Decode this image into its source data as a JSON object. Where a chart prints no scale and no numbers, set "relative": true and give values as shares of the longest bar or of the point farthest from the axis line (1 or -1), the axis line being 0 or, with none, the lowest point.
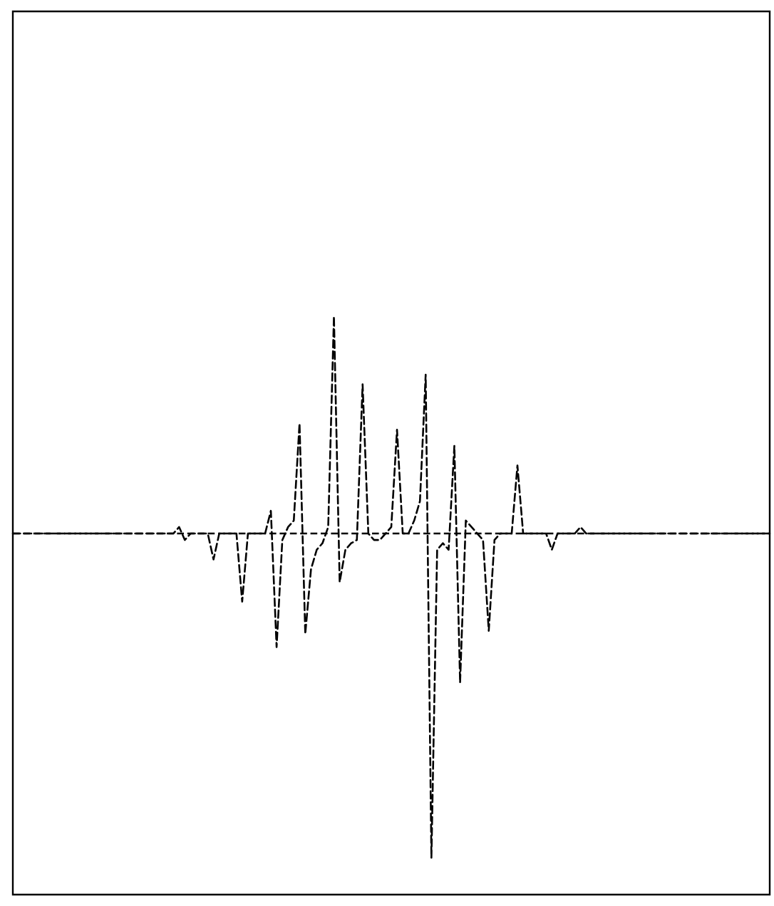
{
  "chart_data": {
    "type": "line",
    "relative": true,
    "ref_lines": [
      {
        "axis": "y",
        "value": 0,
        "color": "#000000",
        "line_style": "dashed"
      }
    ],
    "line_style": "dashed",
    "marker": "none",
    "categories": [
      null,
      null,
      null,
      null,
      null,
      null,
      null,
      null,
      null,
      null,
      null,
      null,
      null,
      null,
      null,
      null,
      null,
      null,
      null,
      null,
      null,
      null,
      null,
      null,
      null,
      null,
      null,
      null,
      null,
      null,
      null,
      null,
      null,
      null,
      null,
      null,
      null,
      null,
      null,
      null,
      null,
      null,
      null,
      null,
      null,
      null,
      null,
      null,
      null,
      null,
      null,
      null,
      null,
      null,
      null,
      null,
      null,
      null,
      null,
      null,
      null,
      null,
      null,
      null,
      null,
      null,
      null,
      null,
      null,
      null,
      null,
      null,
      null,
      null,
      null,
      null,
      null,
      null,
      null,
      null,
      null,
      null,
      null,
      null,
      null,
      null,
      null,
      null,
      null,
      null,
      null,
      null,
      null,
      null,
      null,
      null,
      null,
      null,
      null,
      null,
      null,
      null,
      null,
      null,
      null,
      null,
      null,
      null,
      null,
      null,
      null,
      null,
      null,
      null,
      null,
      null,
      null,
      null,
      null,
      null,
      null,
      null,
      null,
      null,
      null,
      null,
      null,
      null,
      null,
      null,
      null,
      null,
      null
    ],
    "series": [
      {
        "color": "#000000",
        "values": [
          0,
          0,
          0,
          0,
          0,
          0,
          0,
          0,
          0,
          0,
          0,
          0,
          0,
          0,
          0,
          0,
          0,
          0,
          0,
          0,
          0,
          0,
          0,
          0,
          0,
          0,
          0,
          0,
          0,
          0.02,
          -0.02,
          0,
          0,
          0,
          0,
          -0.08,
          0,
          0,
          0,
          0,
          -0.21,
          0,
          0,
          0,
          0,
          0.07,
          -0.35,
          -0.02,
          0.02,
          0.04,
          0.34,
          -0.31,
          -0.11,
          -0.05,
          -0.03,
          0.02,
          0.67,
          -0.15,
          -0.05,
          -0.03,
          -0.02,
          0.46,
          0,
          -0.02,
          -0.02,
          0,
          0.02,
          0.32,
          0,
          0,
          0.04,
          0.1,
          0.49,
          -1,
          -0.05,
          -0.03,
          -0.05,
          0.27,
          -0.46,
          0.04,
          0.02,
          0,
          -0.02,
          -0.3,
          -0.02,
          0,
          0,
          0,
          0.21,
          0,
          0,
          0,
          0,
          0,
          -0.05,
          0,
          0,
          0,
          0,
          0.02,
          0,
          0,
          0,
          0,
          0,
          0,
          0,
          0,
          0,
          0,
          0,
          0,
          0,
          0,
          0,
          0,
          0,
          0,
          0,
          0,
          0,
          0,
          0,
          0,
          0,
          0,
          0,
          0,
          0,
          0,
          0,
          0,
          0
        ]
      }
    ]
  }
}
